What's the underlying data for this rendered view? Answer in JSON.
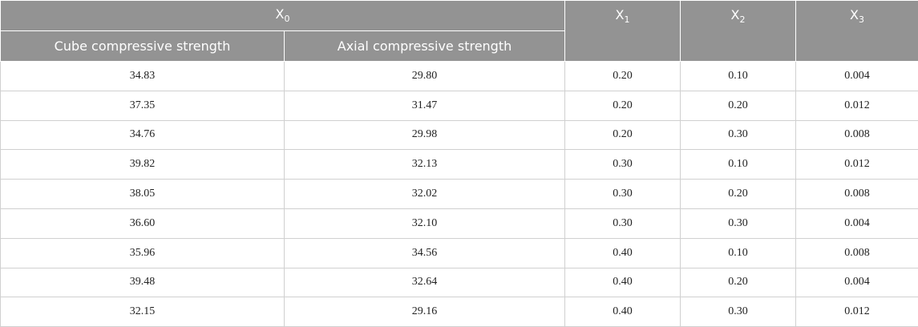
{
  "table": {
    "header": {
      "group": {
        "base": "X",
        "sub": "0"
      },
      "subcolumns": [
        "Cube compressive strength",
        "Axial compressive strength"
      ],
      "columns": [
        {
          "base": "X",
          "sub": "1"
        },
        {
          "base": "X",
          "sub": "2"
        },
        {
          "base": "X",
          "sub": "3"
        }
      ]
    },
    "rows": [
      [
        "34.83",
        "29.80",
        "0.20",
        "0.10",
        "0.004"
      ],
      [
        "37.35",
        "31.47",
        "0.20",
        "0.20",
        "0.012"
      ],
      [
        "34.76",
        "29.98",
        "0.20",
        "0.30",
        "0.008"
      ],
      [
        "39.82",
        "32.13",
        "0.30",
        "0.10",
        "0.012"
      ],
      [
        "38.05",
        "32.02",
        "0.30",
        "0.20",
        "0.008"
      ],
      [
        "36.60",
        "32.10",
        "0.30",
        "0.30",
        "0.004"
      ],
      [
        "35.96",
        "34.56",
        "0.40",
        "0.10",
        "0.008"
      ],
      [
        "39.48",
        "32.64",
        "0.40",
        "0.20",
        "0.004"
      ],
      [
        "32.15",
        "29.16",
        "0.40",
        "0.30",
        "0.012"
      ]
    ]
  }
}
